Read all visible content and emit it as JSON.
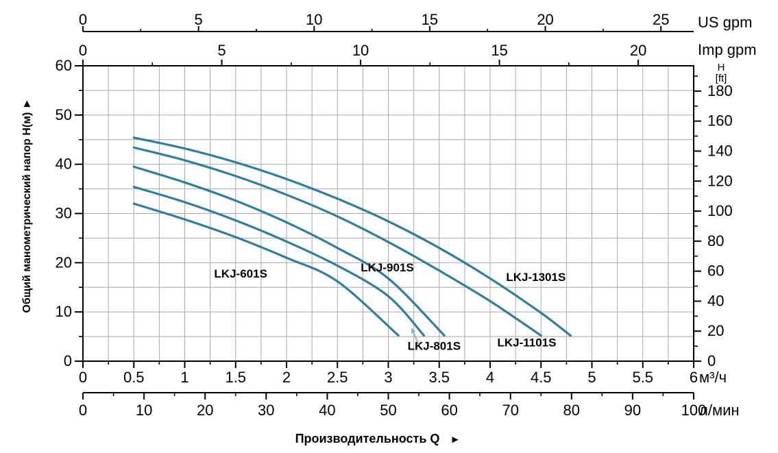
{
  "chart_data": {
    "type": "line",
    "title": "",
    "xlabel": "Производительность Q",
    "xlabel_arrow": "►",
    "xlim_m3h": [
      0,
      6
    ],
    "ylim_m": [
      0,
      60
    ],
    "grid": {
      "visible": true,
      "x_step_m3h": 0.25,
      "y_step_m": 5
    },
    "x_axes": [
      {
        "id": "us-gpm",
        "unit_label": "US gpm",
        "major_ticks": [
          0,
          5,
          10,
          15,
          20,
          25
        ],
        "minor_step": 2.5,
        "m3h_per_unit": 0.227125,
        "row": "top-outer"
      },
      {
        "id": "imp-gpm",
        "unit_label": "Imp gpm",
        "major_ticks": [
          0,
          5,
          10,
          15,
          20
        ],
        "minor_step": 2.5,
        "m3h_per_unit": 0.272766,
        "row": "top-inner"
      },
      {
        "id": "m3h",
        "unit_label": "м³/ч",
        "major_ticks": [
          0,
          0.5,
          1,
          1.5,
          2,
          2.5,
          3,
          3.5,
          4,
          4.5,
          5,
          5.5,
          6
        ],
        "minor_step": 0.25,
        "m3h_per_unit": 1,
        "row": "bottom-inner"
      },
      {
        "id": "l-min",
        "unit_label": "л/мин",
        "major_ticks": [
          0,
          10,
          20,
          30,
          40,
          50,
          60,
          70,
          80,
          90,
          100
        ],
        "minor_step": 5,
        "m3h_per_unit": 0.06,
        "row": "bottom-outer"
      }
    ],
    "y_axes": [
      {
        "id": "h-m",
        "title": "Общий манометрический напор Н(м)",
        "title_arrow": "►",
        "major_ticks": [
          0,
          10,
          20,
          30,
          40,
          50,
          60
        ],
        "minor_step": 5,
        "m_per_unit": 1,
        "side": "left"
      },
      {
        "id": "h-ft",
        "header_lines": [
          "H",
          "[ft]"
        ],
        "major_ticks": [
          0,
          20,
          40,
          60,
          80,
          100,
          120,
          140,
          160,
          180
        ],
        "minor_step": 10,
        "m_per_unit": 0.3048,
        "side": "right"
      }
    ],
    "series": [
      {
        "name": "LKJ-601S",
        "color": "#2e7f9d",
        "points": [
          [
            0.5,
            32
          ],
          [
            1,
            28.8
          ],
          [
            1.5,
            25.2
          ],
          [
            2,
            21
          ],
          [
            2.5,
            16.2
          ],
          [
            3.1,
            5.2
          ]
        ],
        "label_at": [
          1.55,
          17.8
        ]
      },
      {
        "name": "LKJ-801S",
        "color": "#2e7f9d",
        "points": [
          [
            0.5,
            35.4
          ],
          [
            1,
            32.3
          ],
          [
            1.5,
            28.6
          ],
          [
            2,
            24.3
          ],
          [
            2.5,
            19.4
          ],
          [
            3,
            13.2
          ],
          [
            3.35,
            5.2
          ]
        ],
        "label_at": [
          3.45,
          3.1
        ]
      },
      {
        "name": "LKJ-901S",
        "color": "#2e7f9d",
        "points": [
          [
            0.5,
            39.5
          ],
          [
            1,
            36.3
          ],
          [
            1.5,
            32.6
          ],
          [
            2,
            28.2
          ],
          [
            2.5,
            23
          ],
          [
            3,
            16.8
          ],
          [
            3.55,
            5.2
          ]
        ],
        "label_at": [
          2.99,
          19.1
        ]
      },
      {
        "name": "LKJ-1101S",
        "color": "#2e7f9d",
        "points": [
          [
            0.5,
            43.4
          ],
          [
            1,
            40.8
          ],
          [
            1.5,
            37.6
          ],
          [
            2,
            33.8
          ],
          [
            2.5,
            29.4
          ],
          [
            3,
            24.2
          ],
          [
            3.5,
            18.4
          ],
          [
            4,
            12.2
          ],
          [
            4.5,
            5.2
          ]
        ],
        "label_at": [
          4.36,
          3.8
        ]
      },
      {
        "name": "LKJ-1301S",
        "color": "#2e7f9d",
        "points": [
          [
            0.5,
            45.4
          ],
          [
            1,
            43.2
          ],
          [
            1.5,
            40.4
          ],
          [
            2,
            37
          ],
          [
            2.5,
            33
          ],
          [
            3,
            28.4
          ],
          [
            3.5,
            23
          ],
          [
            4,
            16.8
          ],
          [
            4.5,
            9.8
          ],
          [
            4.79,
            5.2
          ]
        ],
        "label_at": [
          4.45,
          17.1
        ]
      }
    ],
    "annotation": {
      "series": "LKJ-801S",
      "arrow_from_qh": [
        3.3,
        3.34
      ],
      "arrow_to_qh": [
        3.225,
        6.82
      ]
    },
    "legend": {
      "visible": false
    }
  },
  "colors": {
    "curve": "#2e7f9d",
    "grid": "#a8a8a8",
    "axis": "#000000",
    "text": "#000000",
    "annotation_arrow": "#8db6c6",
    "background": "#ffffff"
  }
}
